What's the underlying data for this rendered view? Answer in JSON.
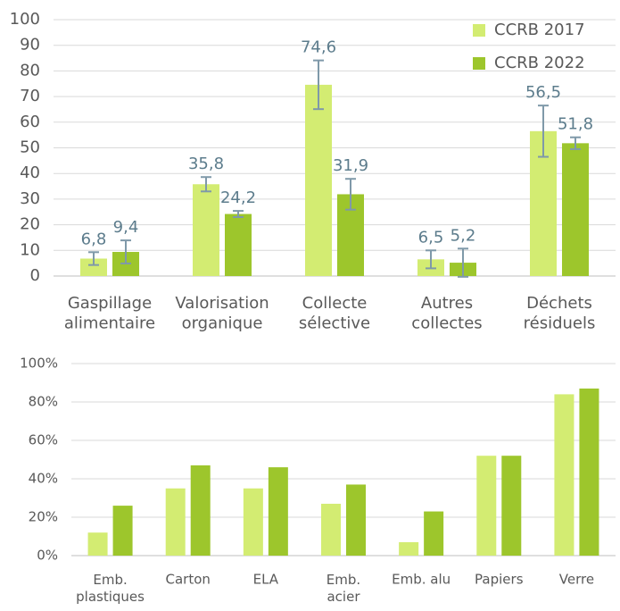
{
  "chart_data": [
    {
      "type": "bar",
      "categories": [
        "Gaspillage\nalimentaire",
        "Valorisation\norganique",
        "Collecte\nsélective",
        "Autres\ncollectes",
        "Déchets\nrésiduels"
      ],
      "series": [
        {
          "name": "CCRB 2017",
          "color": "#d3ec72",
          "values": [
            6.8,
            35.8,
            74.6,
            6.5,
            56.5
          ],
          "value_labels": [
            "6,8",
            "35,8",
            "74,6",
            "6,5",
            "56,5"
          ],
          "errors": [
            2.5,
            2.8,
            9.5,
            3.5,
            10
          ]
        },
        {
          "name": "CCRB 2022",
          "color": "#9dc62c",
          "values": [
            9.4,
            24.2,
            31.9,
            5.2,
            51.8
          ],
          "value_labels": [
            "9,4",
            "24,2",
            "31,9",
            "5,2",
            "51,8"
          ],
          "errors": [
            4.5,
            1.2,
            6,
            5.5,
            2.3
          ]
        }
      ],
      "error_color": "#7f99a9",
      "ylim": [
        0,
        100
      ],
      "yticks": [
        0,
        10,
        20,
        30,
        40,
        50,
        60,
        70,
        80,
        90,
        100
      ],
      "grid": true,
      "legend": "top-right"
    },
    {
      "type": "bar",
      "categories": [
        "Emb.\nplastiques",
        "Carton",
        "ELA",
        "Emb.\nacier",
        "Emb. alu",
        "Papiers",
        "Verre"
      ],
      "series": [
        {
          "color": "#d3ec72",
          "values": [
            12,
            35,
            35,
            27,
            7,
            52,
            84
          ]
        },
        {
          "color": "#9dc62c",
          "values": [
            26,
            47,
            46,
            37,
            23,
            52,
            87
          ]
        }
      ],
      "ylim": [
        0,
        100
      ],
      "yticks": [
        {
          "value": 0,
          "label": "0%"
        },
        {
          "value": 20,
          "label": "20%"
        },
        {
          "value": 40,
          "label": "40%"
        },
        {
          "value": 60,
          "label": "60%"
        },
        {
          "value": 80,
          "label": "80%"
        },
        {
          "value": 100,
          "label": "100%"
        }
      ],
      "grid": true
    }
  ]
}
